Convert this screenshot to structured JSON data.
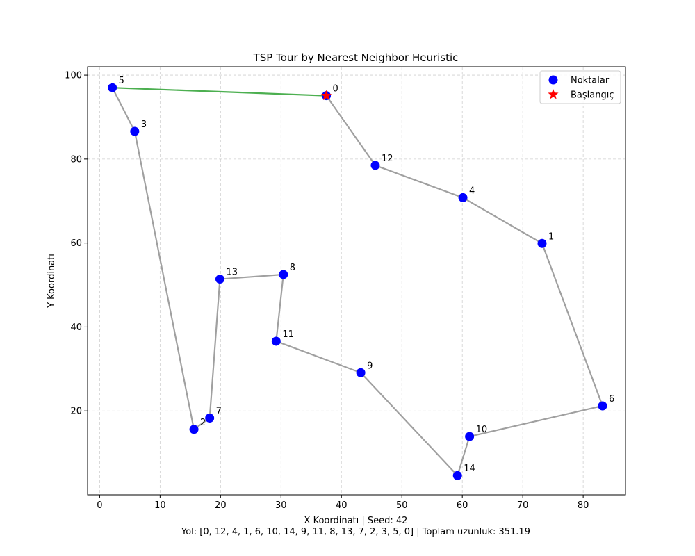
{
  "chart_data": {
    "type": "scatter",
    "title": "TSP Tour by Nearest Neighbor Heuristic",
    "xlabel": "X Koordinatı | Seed: 42",
    "xlabel_line2": "Yol: [0, 12, 4, 1, 6, 10, 14, 9, 11, 8, 13, 7, 2, 3, 5, 0] | Toplam uzunluk: 351.19",
    "ylabel": "Y Koordinatı",
    "xlim": [
      -2,
      87
    ],
    "ylim": [
      0,
      102
    ],
    "xticks": [
      0,
      10,
      20,
      30,
      40,
      50,
      60,
      70,
      80
    ],
    "yticks": [
      20,
      40,
      60,
      80,
      100
    ],
    "grid": true,
    "legend_position": "top-right",
    "legend": [
      {
        "label": "Noktalar",
        "marker": "circle",
        "color": "#0000ff"
      },
      {
        "label": "Başlangıç",
        "marker": "star",
        "color": "#ff0000"
      }
    ],
    "points": [
      {
        "id": "0",
        "x": 37.5,
        "y": 95.1
      },
      {
        "id": "1",
        "x": 73.2,
        "y": 59.9
      },
      {
        "id": "2",
        "x": 15.6,
        "y": 15.6
      },
      {
        "id": "3",
        "x": 5.8,
        "y": 86.6
      },
      {
        "id": "4",
        "x": 60.1,
        "y": 70.8
      },
      {
        "id": "5",
        "x": 2.1,
        "y": 97.0
      },
      {
        "id": "6",
        "x": 83.2,
        "y": 21.2
      },
      {
        "id": "7",
        "x": 18.2,
        "y": 18.3
      },
      {
        "id": "8",
        "x": 30.4,
        "y": 52.5
      },
      {
        "id": "9",
        "x": 43.2,
        "y": 29.1
      },
      {
        "id": "10",
        "x": 61.2,
        "y": 13.9
      },
      {
        "id": "11",
        "x": 29.2,
        "y": 36.6
      },
      {
        "id": "12",
        "x": 45.6,
        "y": 78.5
      },
      {
        "id": "13",
        "x": 19.9,
        "y": 51.4
      },
      {
        "id": "14",
        "x": 59.2,
        "y": 4.6
      }
    ],
    "start_point": "0",
    "tour": [
      0,
      12,
      4,
      1,
      6,
      10,
      14,
      9,
      11,
      8,
      13,
      7,
      2,
      3,
      5,
      0
    ],
    "series_colors": {
      "points": "#0000ff",
      "start": "#ff0000",
      "path": "#a0a0a0",
      "closing_edge": "#4caf50"
    }
  }
}
